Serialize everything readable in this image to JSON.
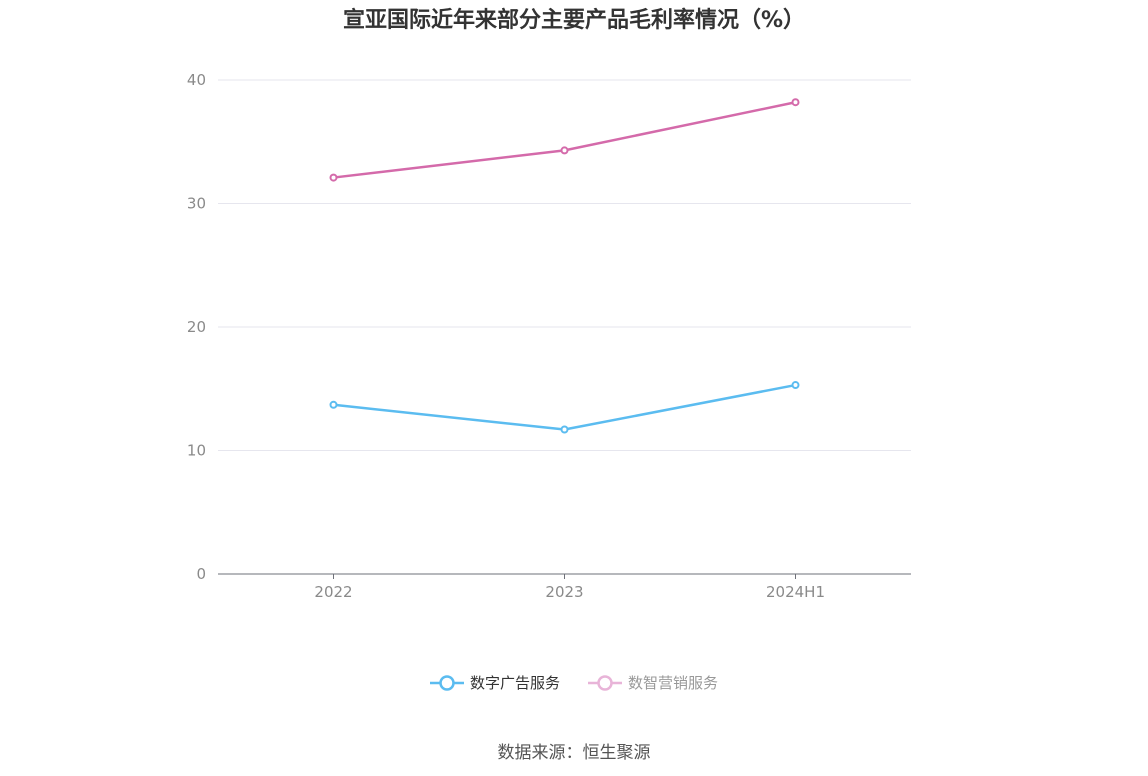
{
  "chart_data": {
    "type": "line",
    "title": "宣亚国际近年来部分主要产品毛利率情况（%）",
    "categories": [
      "2022",
      "2023",
      "2024H1"
    ],
    "series": [
      {
        "name": "数字广告服务",
        "values": [
          13.7,
          11.7,
          15.3
        ],
        "color": "#5bbcf0"
      },
      {
        "name": "数智营销服务",
        "values": [
          32.1,
          34.3,
          38.2
        ],
        "color": "#d46aaa"
      }
    ],
    "yticks": [
      "0",
      "10",
      "20",
      "30",
      "40"
    ],
    "ylim": [
      0,
      40
    ],
    "grid": true,
    "legend_position": "bottom",
    "legend_colors": {
      "active_text": "#333333",
      "inactive_text": "#999999",
      "inactive_marker": "#e8b4d8"
    }
  },
  "source": "数据来源：恒生聚源"
}
